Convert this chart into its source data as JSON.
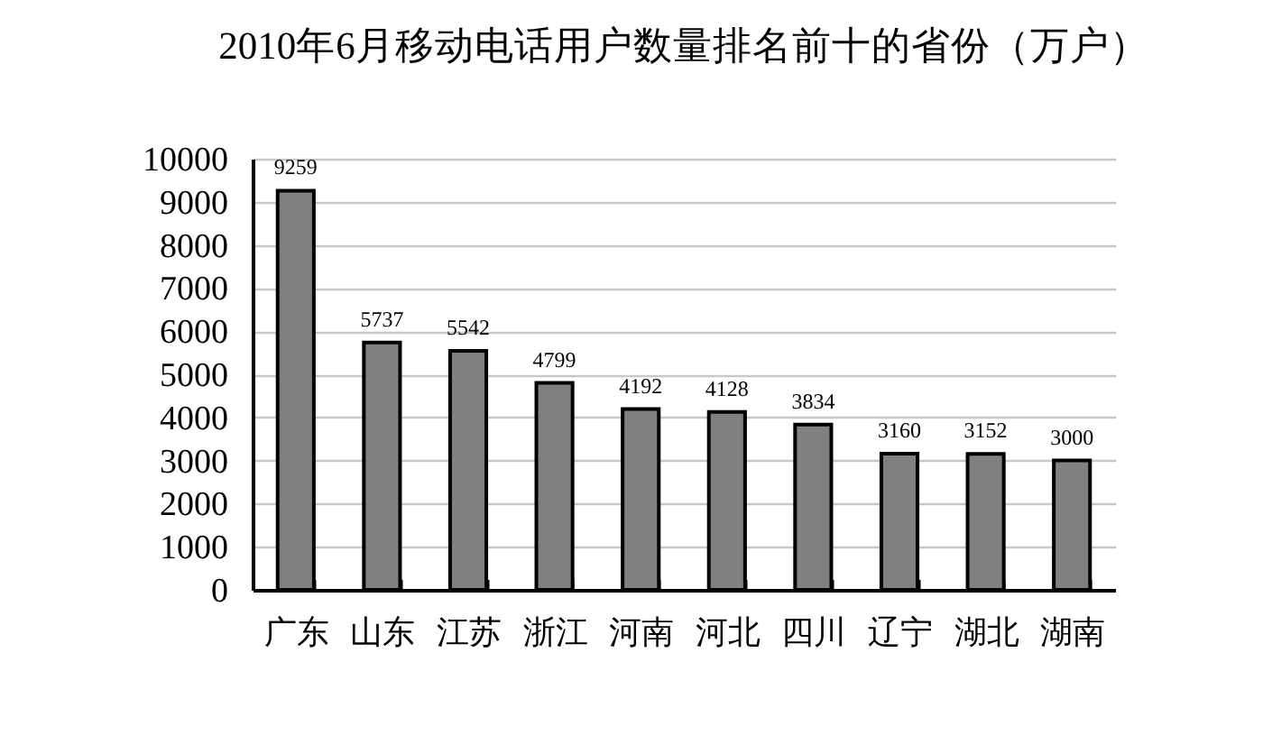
{
  "chart_data": {
    "type": "bar",
    "title": "2010年6月移动电话用户数量排名前十的省份（万户）",
    "categories": [
      "广东",
      "山东",
      "江苏",
      "浙江",
      "河南",
      "河北",
      "四川",
      "辽宁",
      "湖北",
      "湖南"
    ],
    "values": [
      9259,
      5737,
      5542,
      4799,
      4192,
      4128,
      3834,
      3160,
      3152,
      3000
    ],
    "color": "#808080",
    "ylim": [
      0,
      10000
    ],
    "yticks": [
      0,
      1000,
      2000,
      3000,
      4000,
      5000,
      6000,
      7000,
      8000,
      9000,
      10000
    ],
    "grid": "y",
    "data_labels": true
  }
}
